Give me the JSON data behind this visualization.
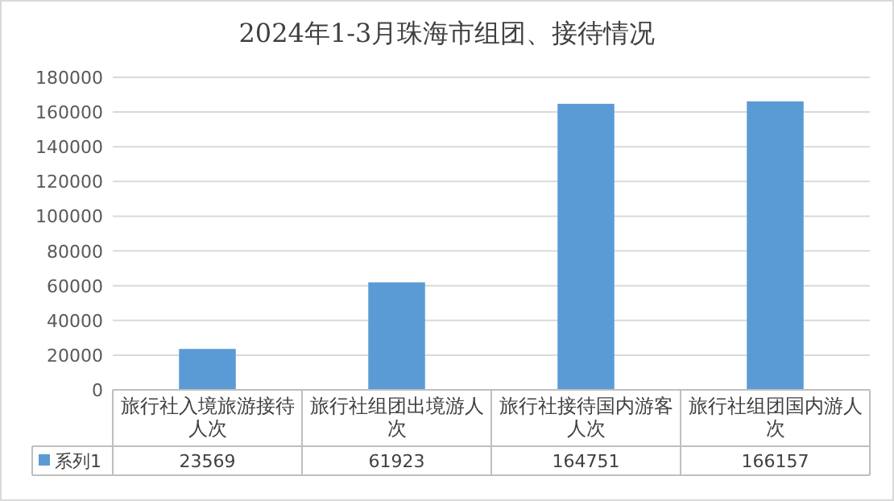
{
  "chart_data": {
    "type": "bar",
    "title": "2024年1-3月珠海市组团、接待情况",
    "categories": [
      "旅行社入境旅游接待人次",
      "旅行社组团出境游人次",
      "旅行社接待国内游客人次",
      "旅行社组团国内游人次"
    ],
    "series": [
      {
        "name": "系列1",
        "color": "#5b9bd5",
        "values": [
          23569,
          61923,
          164751,
          166157
        ]
      }
    ],
    "ylim": [
      0,
      180000
    ],
    "yticks": [
      0,
      20000,
      40000,
      60000,
      80000,
      100000,
      120000,
      140000,
      160000,
      180000
    ],
    "grid": "y",
    "data_labels": true
  }
}
